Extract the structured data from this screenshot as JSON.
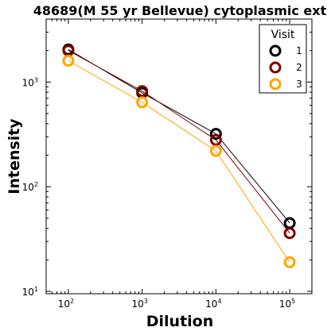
{
  "chart_data": {
    "type": "line",
    "title": "48689(M 55 yr Bellevue) cytoplasmic ext",
    "xlabel": "Dilution",
    "ylabel": "Intensity",
    "x_scale": "log",
    "y_scale": "log",
    "xlim": [
      50,
      200000
    ],
    "ylim": [
      9.5,
      4000
    ],
    "x_ticks": [
      {
        "value": 100,
        "base": "10",
        "exp": "2"
      },
      {
        "value": 1000,
        "base": "10",
        "exp": "3"
      },
      {
        "value": 10000,
        "base": "10",
        "exp": "4"
      },
      {
        "value": 100000,
        "base": "10",
        "exp": "5"
      }
    ],
    "y_ticks": [
      {
        "value": 10,
        "base": "10",
        "exp": "1"
      },
      {
        "value": 100,
        "base": "10",
        "exp": "2"
      },
      {
        "value": 1000,
        "base": "10",
        "exp": "3"
      }
    ],
    "legend": {
      "title": "Visit",
      "placement": "top-right"
    },
    "grid": false,
    "series": [
      {
        "name": "1",
        "color": "#000000",
        "x": [
          100,
          1000,
          10000,
          100000
        ],
        "y": [
          2050,
          790,
          320,
          45
        ]
      },
      {
        "name": "2",
        "color": "#800000",
        "x": [
          100,
          1000,
          10000,
          100000
        ],
        "y": [
          2000,
          820,
          280,
          36
        ]
      },
      {
        "name": "3",
        "color": "#FFA500",
        "x": [
          100,
          1000,
          10000,
          100000
        ],
        "y": [
          1600,
          640,
          220,
          19
        ]
      }
    ]
  }
}
